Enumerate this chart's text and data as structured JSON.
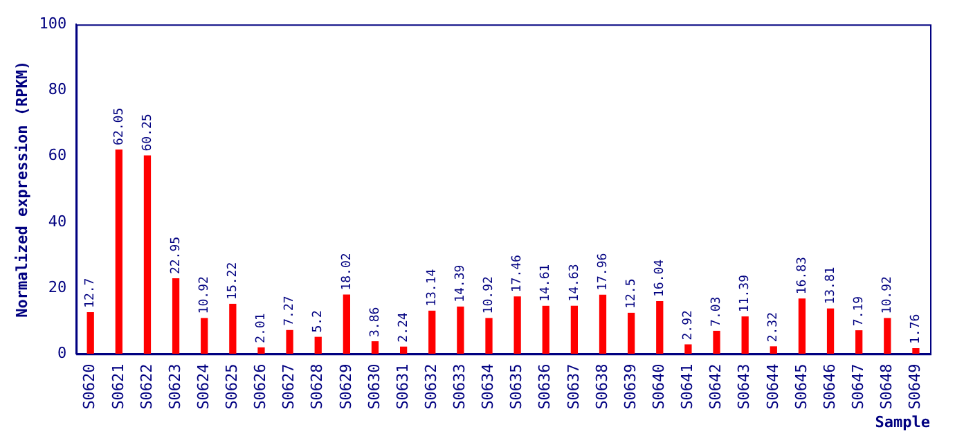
{
  "chart_data": {
    "type": "bar",
    "xlabel": "Sample",
    "ylabel": "Normalized expression (RPKM)",
    "categories": [
      "S0620",
      "S0621",
      "S0622",
      "S0623",
      "S0624",
      "S0625",
      "S0626",
      "S0627",
      "S0628",
      "S0629",
      "S0630",
      "S0631",
      "S0632",
      "S0633",
      "S0634",
      "S0635",
      "S0636",
      "S0637",
      "S0638",
      "S0639",
      "S0640",
      "S0641",
      "S0642",
      "S0643",
      "S0644",
      "S0645",
      "S0646",
      "S0647",
      "S0648",
      "S0649"
    ],
    "values": [
      12.7,
      62.05,
      60.25,
      22.95,
      10.92,
      15.22,
      2.01,
      7.27,
      5.2,
      18.02,
      3.86,
      2.24,
      13.14,
      14.39,
      10.92,
      17.46,
      14.61,
      14.63,
      17.96,
      12.5,
      16.04,
      2.92,
      7.03,
      11.39,
      2.32,
      16.83,
      13.81,
      7.19,
      10.92,
      1.76
    ],
    "color": "#ff0000",
    "ylim": [
      0,
      100
    ],
    "yticks": [
      0,
      20,
      40,
      60,
      80,
      100
    ],
    "grid": false,
    "legend": false,
    "data_labels": true
  }
}
